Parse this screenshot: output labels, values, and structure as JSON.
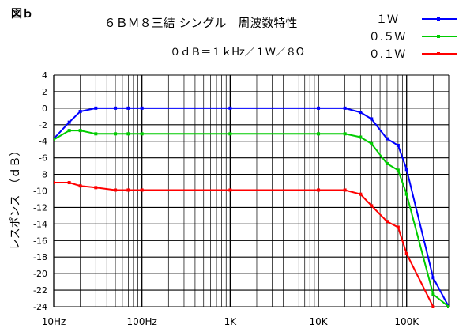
{
  "figure_label": "図ｂ",
  "title": "６ＢＭ８三結 シングル　周波数特性",
  "subtitle": "０ｄＢ＝１ｋHz／１Ｗ／８Ω",
  "chart_data": {
    "type": "line",
    "xscale": "log",
    "xlim": [
      10,
      300000
    ],
    "ylim": [
      -24,
      4
    ],
    "ylabel": "レスポンス　（ｄＢ）",
    "xticks": [
      {
        "value": 10,
        "label": "10Hz"
      },
      {
        "value": 100,
        "label": "100Hz"
      },
      {
        "value": 1000,
        "label": "1K"
      },
      {
        "value": 10000,
        "label": "10K"
      },
      {
        "value": 100000,
        "label": "100K"
      }
    ],
    "yticks": [
      4,
      2,
      0,
      -2,
      -4,
      -6,
      -8,
      -10,
      -12,
      -14,
      -16,
      -18,
      -20,
      -22,
      -24
    ],
    "grid": true,
    "legend_position": "top-right",
    "series": [
      {
        "name": "１Ｗ",
        "color": "#0000ff",
        "points": [
          [
            10,
            -3.7
          ],
          [
            15,
            -1.7
          ],
          [
            20,
            -0.4
          ],
          [
            30,
            0
          ],
          [
            50,
            0
          ],
          [
            70,
            0
          ],
          [
            100,
            0
          ],
          [
            1000,
            0
          ],
          [
            10000,
            0
          ],
          [
            20000,
            0
          ],
          [
            30000,
            -0.5
          ],
          [
            40000,
            -1.3
          ],
          [
            60000,
            -3.7
          ],
          [
            80000,
            -4.5
          ],
          [
            100000,
            -7.4
          ],
          [
            200000,
            -20.5
          ],
          [
            300000,
            -24
          ]
        ]
      },
      {
        "name": "０.５Ｗ",
        "color": "#00cc00",
        "points": [
          [
            10,
            -3.8
          ],
          [
            15,
            -2.7
          ],
          [
            20,
            -2.7
          ],
          [
            30,
            -3.1
          ],
          [
            50,
            -3.1
          ],
          [
            70,
            -3.1
          ],
          [
            100,
            -3.1
          ],
          [
            1000,
            -3.1
          ],
          [
            10000,
            -3.1
          ],
          [
            20000,
            -3.1
          ],
          [
            30000,
            -3.5
          ],
          [
            40000,
            -4.3
          ],
          [
            60000,
            -6.7
          ],
          [
            80000,
            -7.5
          ],
          [
            100000,
            -10.4
          ],
          [
            200000,
            -22.5
          ],
          [
            300000,
            -24
          ]
        ]
      },
      {
        "name": "０.１Ｗ",
        "color": "#ff0000",
        "points": [
          [
            10,
            -9.0
          ],
          [
            15,
            -9.0
          ],
          [
            20,
            -9.4
          ],
          [
            30,
            -9.6
          ],
          [
            50,
            -9.9
          ],
          [
            70,
            -9.9
          ],
          [
            100,
            -9.9
          ],
          [
            1000,
            -9.9
          ],
          [
            10000,
            -9.9
          ],
          [
            20000,
            -9.9
          ],
          [
            30000,
            -10.4
          ],
          [
            40000,
            -11.8
          ],
          [
            60000,
            -13.7
          ],
          [
            80000,
            -14.4
          ],
          [
            100000,
            -17.6
          ],
          [
            200000,
            -24
          ]
        ]
      }
    ]
  }
}
